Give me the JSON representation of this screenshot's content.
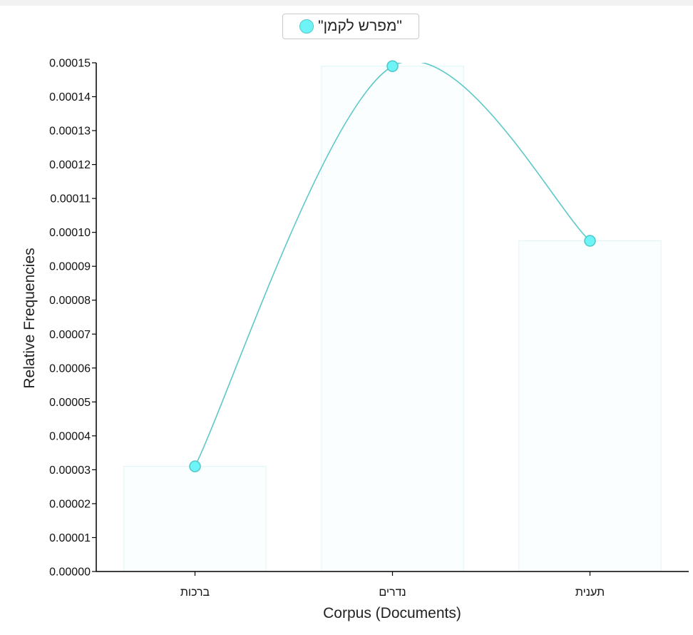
{
  "chart_data": {
    "type": "bar",
    "categories": [
      "ברכות",
      "נדרים",
      "תענית"
    ],
    "series": [
      {
        "name": "\"מפרש לקמן\"",
        "values": [
          3.1e-05,
          0.000149,
          9.75e-05
        ],
        "color": "#6ef4f7",
        "stroke": "#4fc8c8",
        "line_color": "#5ec8c8"
      }
    ],
    "xlabel": "Corpus (Documents)",
    "ylabel": "Relative Frequencies",
    "ylim": [
      0,
      0.00015
    ],
    "ytick_step": 1e-05,
    "ytick_decimals": 5,
    "legend_position": "top-center",
    "bar_fill": "#fafefe",
    "bar_stroke": "#e3f6f6"
  }
}
